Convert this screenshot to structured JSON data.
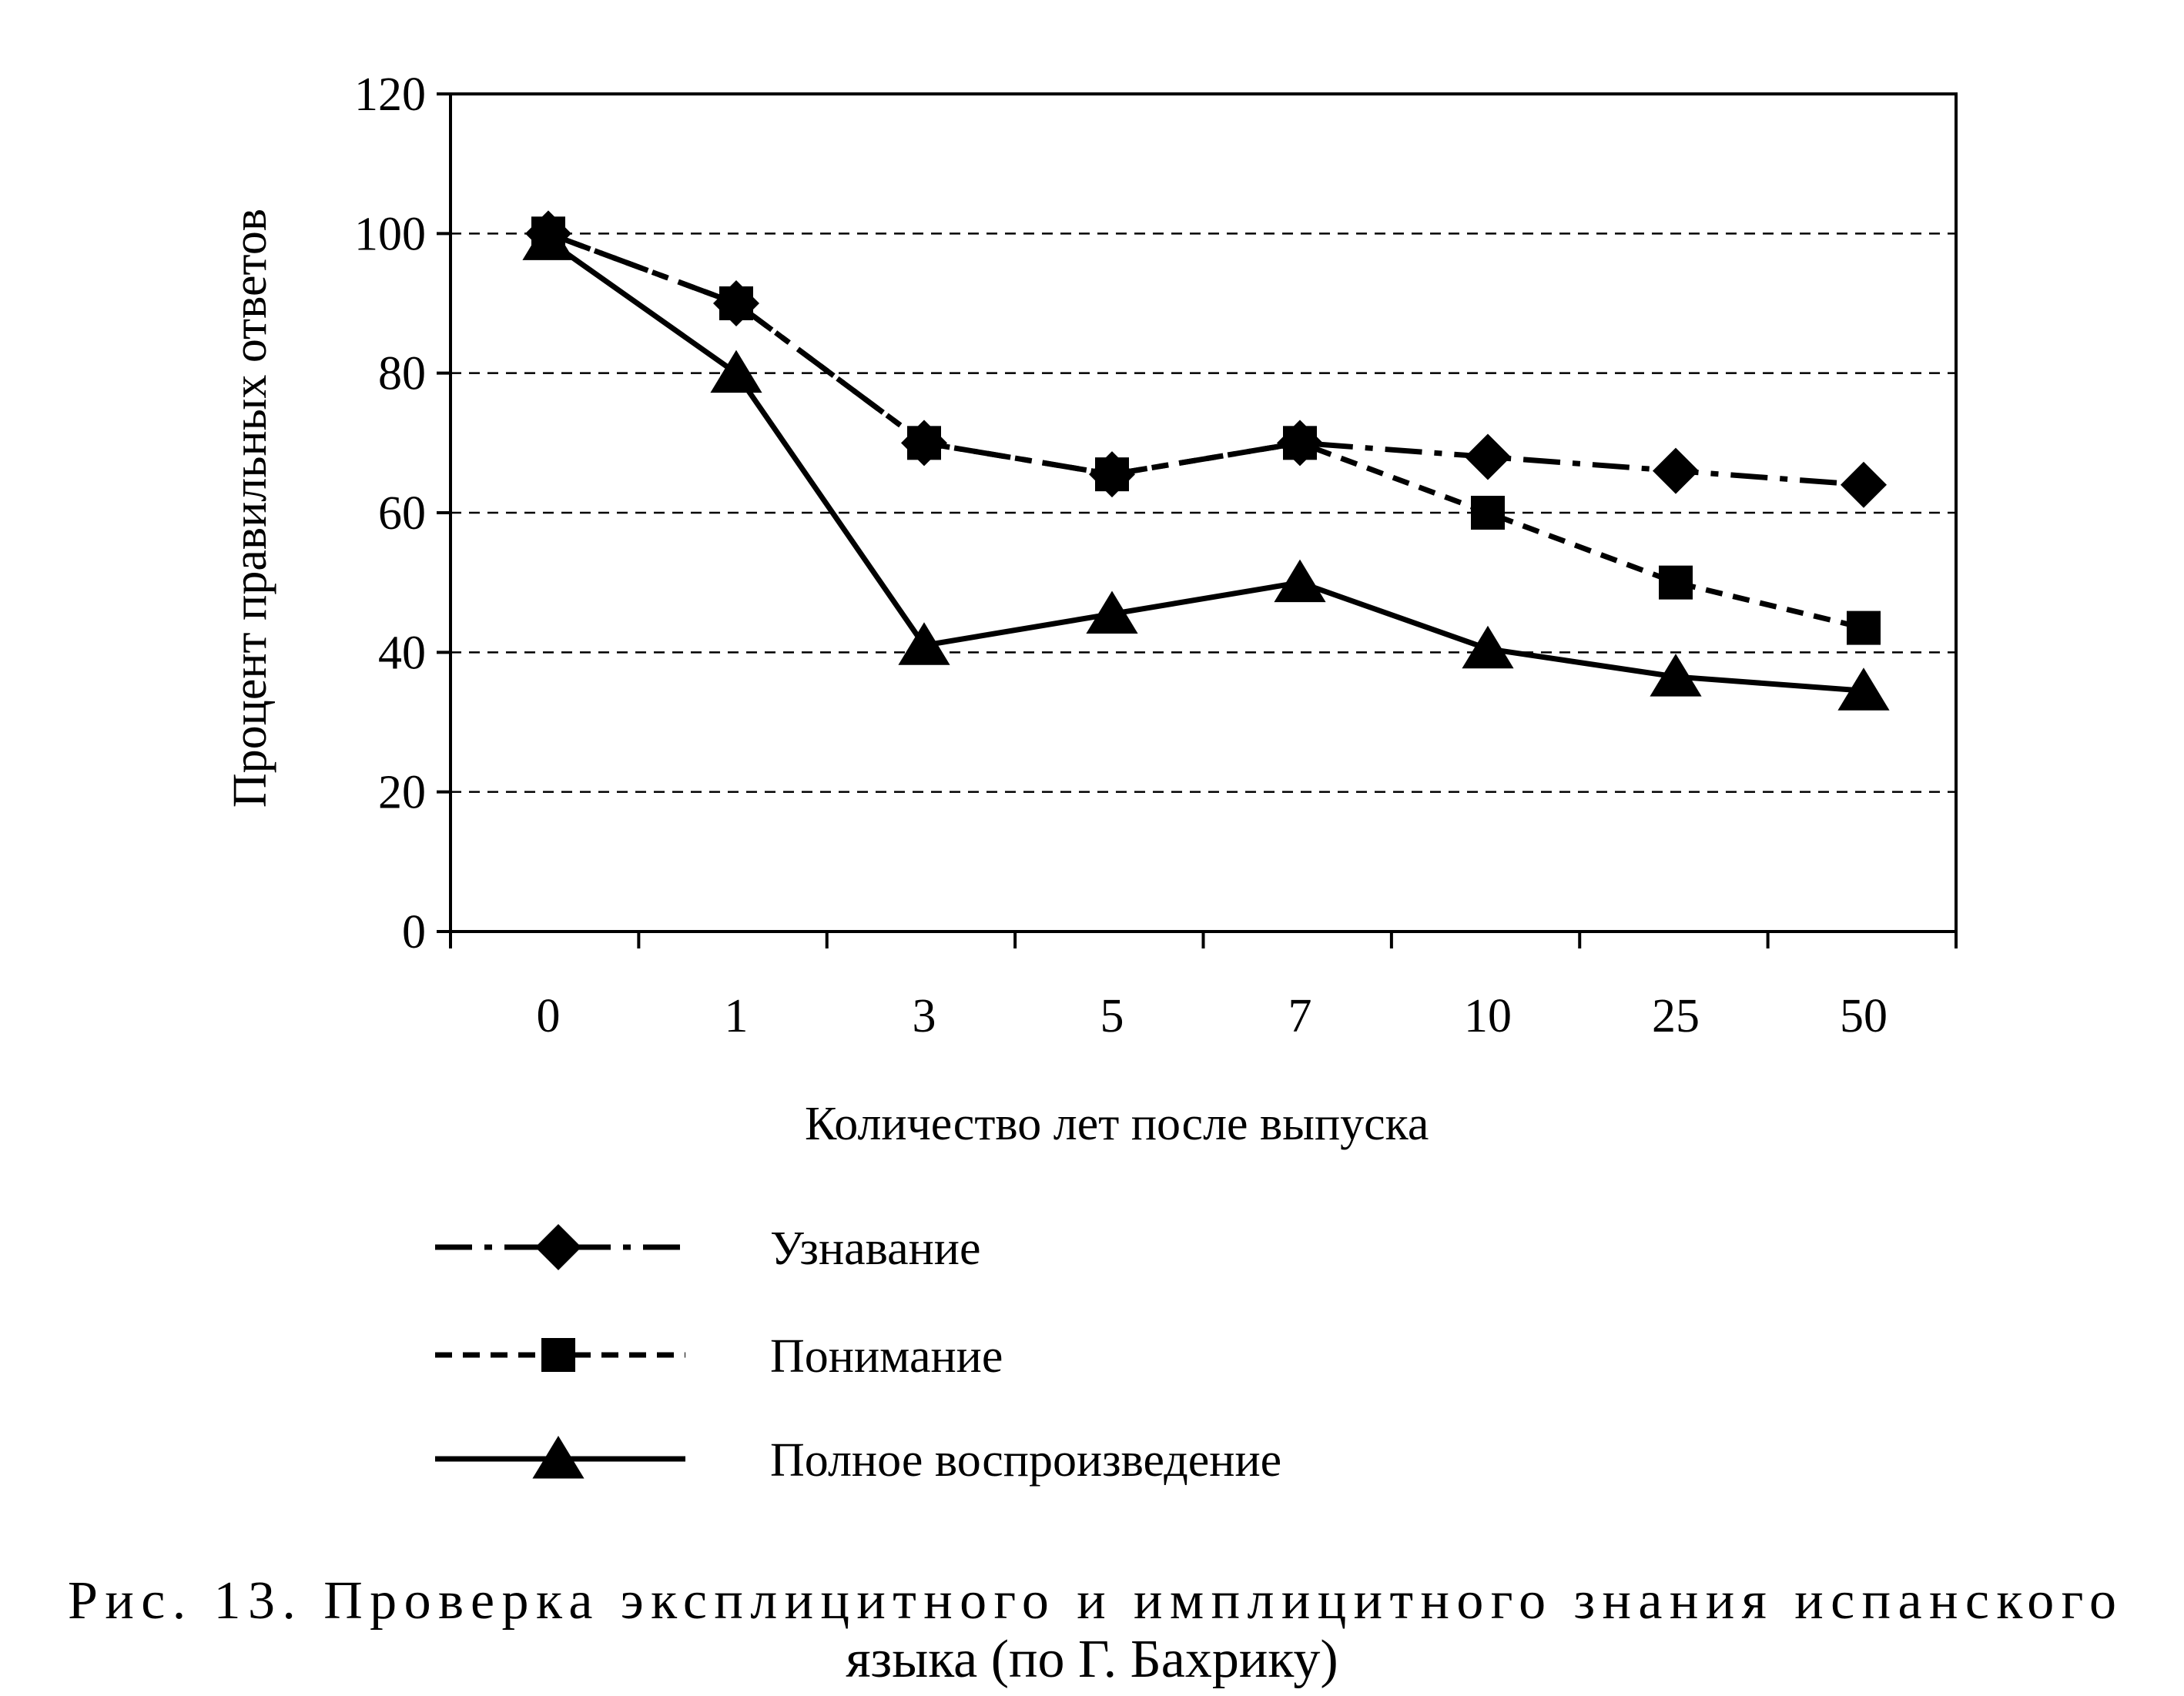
{
  "chart_data": {
    "type": "line",
    "categories": [
      "0",
      "1",
      "3",
      "5",
      "7",
      "10",
      "25",
      "50"
    ],
    "series": [
      {
        "name": "Узнавание",
        "marker": "diamond",
        "dash": "dash-dot",
        "values": [
          100,
          90,
          70,
          65.5,
          70,
          68,
          66,
          64
        ]
      },
      {
        "name": "Понимание",
        "marker": "square",
        "dash": "dashed",
        "values": [
          100,
          90,
          70,
          65.5,
          70,
          60,
          50,
          43.5
        ]
      },
      {
        "name": "Полное воспроизведение",
        "marker": "triangle",
        "dash": "solid",
        "values": [
          99,
          80,
          41,
          45.5,
          50,
          40.5,
          36.5,
          34.5
        ]
      }
    ],
    "ylabel": "Процент правильных ответов",
    "xlabel": "Количество лет после выпуска",
    "ylim": [
      0,
      120
    ],
    "yticks": [
      0,
      20,
      40,
      60,
      80,
      100,
      120
    ],
    "grid": "horizontal dashed",
    "legend": "bottom"
  },
  "caption": {
    "line1": "Рис. 13. Проверка эксплицитного и имплицитного знания испанского",
    "line2": "языка (по Г. Бахрику)"
  }
}
